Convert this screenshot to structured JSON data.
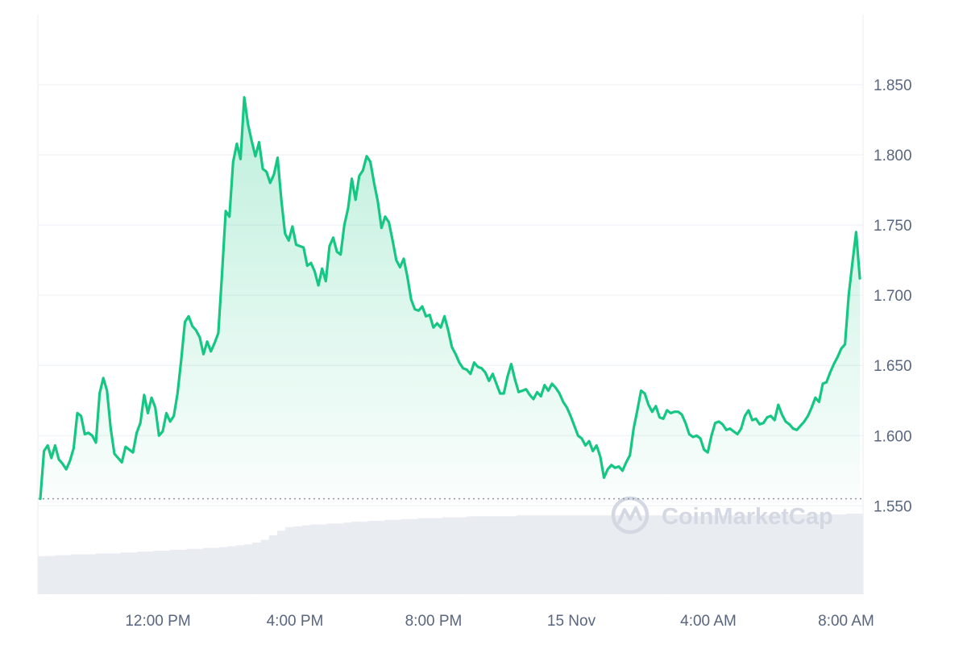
{
  "chart_data": {
    "type": "line",
    "series": [
      {
        "values": [
          1.555,
          1.589,
          1.593,
          1.584,
          1.593,
          1.583,
          1.58,
          1.576,
          1.582,
          1.591,
          1.616,
          1.614,
          1.601,
          1.602,
          1.6,
          1.595,
          1.63,
          1.641,
          1.632,
          1.605,
          1.587,
          1.584,
          1.581,
          1.592,
          1.59,
          1.588,
          1.602,
          1.609,
          1.629,
          1.616,
          1.627,
          1.62,
          1.6,
          1.603,
          1.616,
          1.61,
          1.614,
          1.63,
          1.654,
          1.681,
          1.685,
          1.678,
          1.675,
          1.67,
          1.658,
          1.667,
          1.66,
          1.666,
          1.673,
          1.715,
          1.76,
          1.756,
          1.795,
          1.808,
          1.797,
          1.841,
          1.822,
          1.81,
          1.799,
          1.809,
          1.79,
          1.788,
          1.78,
          1.786,
          1.798,
          1.768,
          1.744,
          1.739,
          1.749,
          1.736,
          1.735,
          1.734,
          1.721,
          1.723,
          1.717,
          1.707,
          1.719,
          1.71,
          1.735,
          1.741,
          1.731,
          1.729,
          1.75,
          1.762,
          1.783,
          1.768,
          1.785,
          1.789,
          1.799,
          1.795,
          1.78,
          1.767,
          1.748,
          1.756,
          1.752,
          1.739,
          1.725,
          1.72,
          1.726,
          1.713,
          1.697,
          1.69,
          1.689,
          1.692,
          1.685,
          1.686,
          1.677,
          1.68,
          1.677,
          1.685,
          1.675,
          1.663,
          1.658,
          1.652,
          1.648,
          1.647,
          1.644,
          1.652,
          1.649,
          1.648,
          1.645,
          1.639,
          1.644,
          1.637,
          1.63,
          1.63,
          1.642,
          1.651,
          1.64,
          1.631,
          1.632,
          1.633,
          1.629,
          1.626,
          1.631,
          1.628,
          1.636,
          1.632,
          1.637,
          1.634,
          1.63,
          1.624,
          1.62,
          1.614,
          1.607,
          1.6,
          1.598,
          1.593,
          1.596,
          1.589,
          1.593,
          1.585,
          1.57,
          1.576,
          1.579,
          1.577,
          1.578,
          1.575,
          1.581,
          1.586,
          1.605,
          1.618,
          1.632,
          1.63,
          1.622,
          1.617,
          1.621,
          1.613,
          1.612,
          1.618,
          1.616,
          1.617,
          1.617,
          1.615,
          1.609,
          1.601,
          1.599,
          1.6,
          1.598,
          1.59,
          1.588,
          1.6,
          1.609,
          1.61,
          1.608,
          1.604,
          1.605,
          1.603,
          1.601,
          1.605,
          1.614,
          1.618,
          1.611,
          1.612,
          1.608,
          1.609,
          1.613,
          1.614,
          1.611,
          1.622,
          1.615,
          1.61,
          1.608,
          1.605,
          1.604,
          1.607,
          1.61,
          1.614,
          1.62,
          1.627,
          1.624,
          1.637,
          1.638,
          1.645,
          1.651,
          1.656,
          1.662,
          1.665,
          1.7,
          1.723,
          1.745,
          1.712
        ]
      }
    ],
    "x_ticks": [
      "12:00 PM",
      "4:00 PM",
      "8:00 PM",
      "15 Nov",
      "4:00 AM",
      "8:00 AM"
    ],
    "y_ticks": [
      "1.850",
      "1.800",
      "1.750",
      "1.700",
      "1.650",
      "1.600",
      "1.550"
    ],
    "ylim": [
      1.487,
      1.9
    ],
    "baseline": 1.555,
    "grid": true,
    "legend": "none",
    "volume": {
      "values": [
        2,
        2,
        3,
        3,
        4,
        4,
        4,
        5,
        5,
        5,
        6,
        6,
        7,
        7,
        8,
        8,
        9,
        9,
        10,
        10,
        11,
        11,
        12,
        13,
        14,
        15,
        17,
        20,
        25,
        30,
        34,
        35,
        36,
        37,
        37,
        38,
        38,
        39,
        40,
        40,
        41,
        41,
        42,
        42,
        43,
        43,
        44,
        44,
        44,
        45,
        45,
        45,
        46,
        46,
        46,
        46,
        46,
        46,
        47,
        47,
        47,
        47,
        47,
        47,
        47,
        47,
        47,
        47,
        47,
        47,
        47,
        47,
        47,
        47,
        47,
        47,
        47,
        47,
        47,
        46,
        46,
        47,
        47,
        47,
        47,
        47,
        47,
        47,
        47,
        48,
        48,
        48,
        48,
        48,
        48,
        48,
        48,
        48,
        49,
        49
      ],
      "max": 49
    },
    "colors": {
      "line": "#16c784",
      "baseline": "#8d95a3",
      "grid": "#eff2f5",
      "volume": "#e9ecf1"
    },
    "watermark": "CoinMarketCap"
  }
}
